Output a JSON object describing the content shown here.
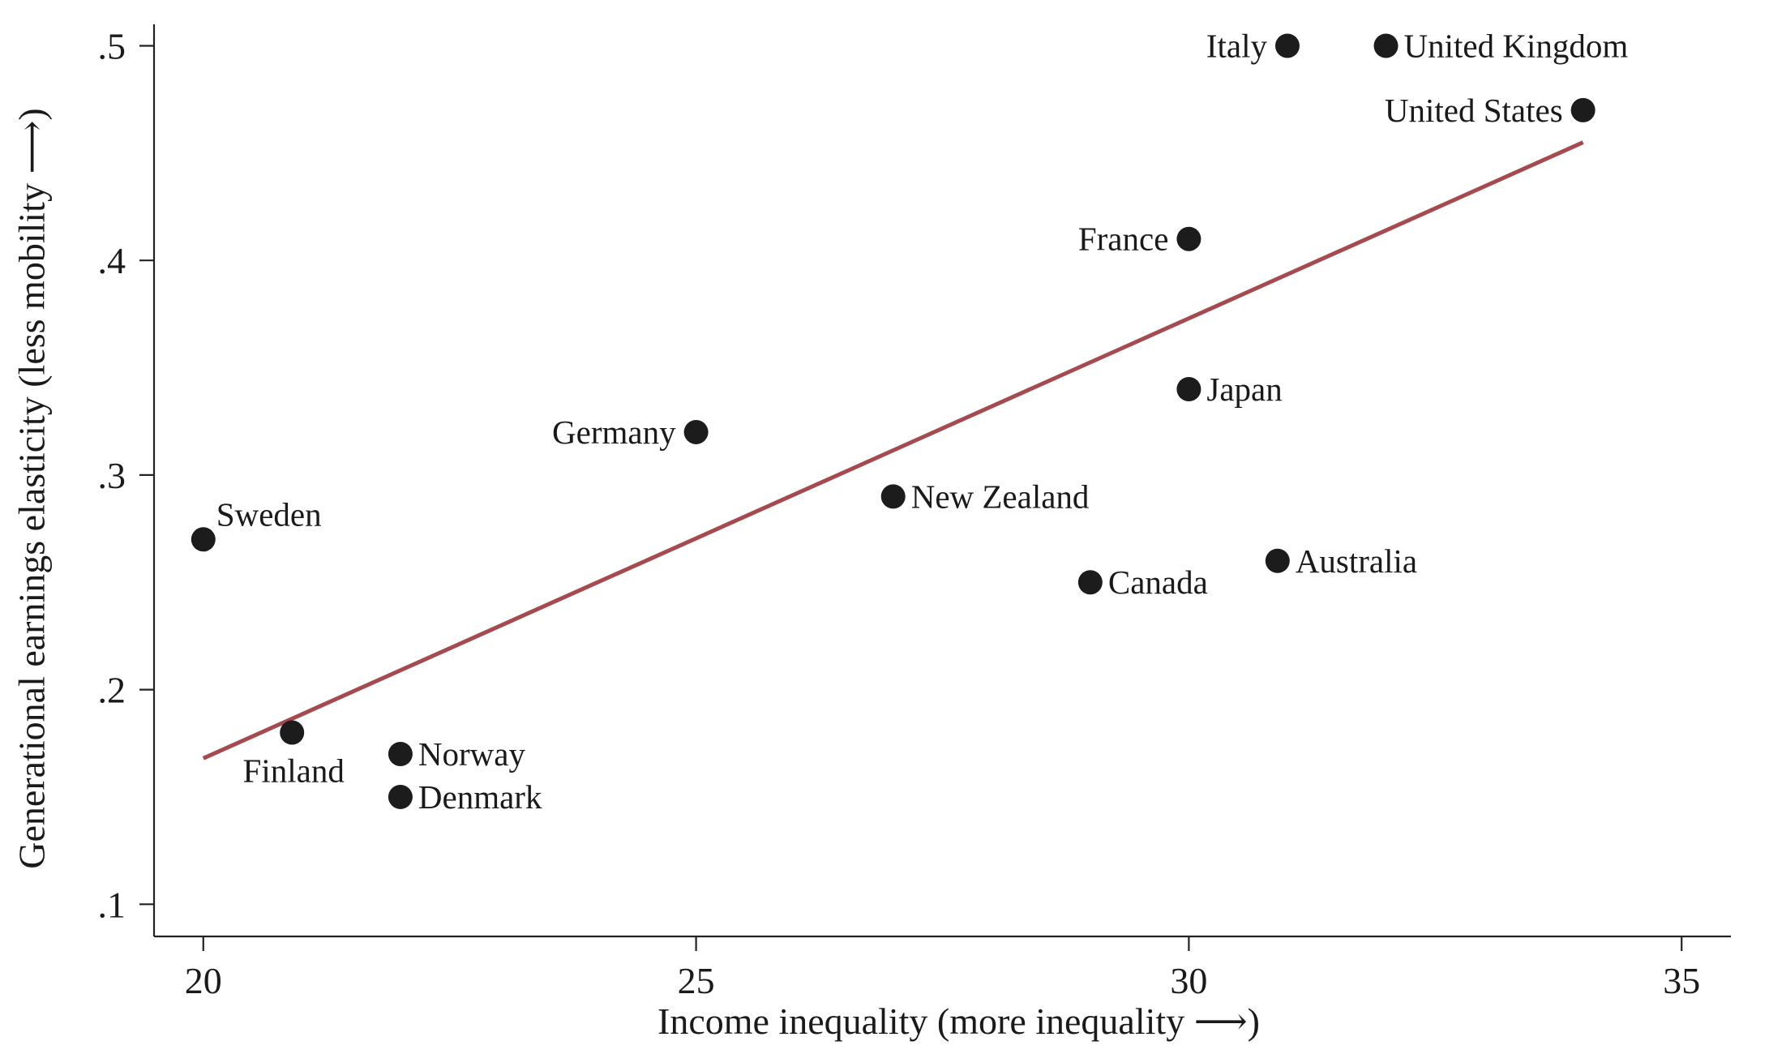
{
  "chart_data": {
    "type": "scatter",
    "title": "",
    "xlabel": "Income inequality (more inequality ⟶)",
    "ylabel": "Generational earnings elasticity (less mobility ⟶)",
    "xlim": [
      19.5,
      35.5
    ],
    "ylim": [
      0.085,
      0.51
    ],
    "x_ticks": [
      20,
      25,
      30,
      35
    ],
    "x_tick_labels": [
      "20",
      "25",
      "30",
      "35"
    ],
    "y_ticks": [
      0.1,
      0.2,
      0.3,
      0.4,
      0.5
    ],
    "y_tick_labels": [
      ".1",
      ".2",
      ".3",
      ".4",
      ".5"
    ],
    "grid": false,
    "legend": "none",
    "point_color": "#1c1c1c",
    "fit_line_color": "#a54b4f",
    "points": [
      {
        "label": "Sweden",
        "x": 20.0,
        "y": 0.27,
        "label_pos": "upper-right"
      },
      {
        "label": "Finland",
        "x": 20.9,
        "y": 0.18,
        "label_pos": "below"
      },
      {
        "label": "Norway",
        "x": 22.0,
        "y": 0.17,
        "label_pos": "right"
      },
      {
        "label": "Denmark",
        "x": 22.0,
        "y": 0.15,
        "label_pos": "right"
      },
      {
        "label": "Germany",
        "x": 25.0,
        "y": 0.32,
        "label_pos": "left"
      },
      {
        "label": "New Zealand",
        "x": 27.0,
        "y": 0.29,
        "label_pos": "right"
      },
      {
        "label": "Canada",
        "x": 29.0,
        "y": 0.25,
        "label_pos": "right"
      },
      {
        "label": "France",
        "x": 30.0,
        "y": 0.41,
        "label_pos": "left"
      },
      {
        "label": "Japan",
        "x": 30.0,
        "y": 0.34,
        "label_pos": "right"
      },
      {
        "label": "Australia",
        "x": 30.9,
        "y": 0.26,
        "label_pos": "right"
      },
      {
        "label": "Italy",
        "x": 31.0,
        "y": 0.5,
        "label_pos": "left"
      },
      {
        "label": "United Kingdom",
        "x": 32.0,
        "y": 0.5,
        "label_pos": "right"
      },
      {
        "label": "United States",
        "x": 34.0,
        "y": 0.47,
        "label_pos": "left"
      }
    ],
    "fit_line": {
      "x": [
        20.0,
        34.0
      ],
      "y": [
        0.168,
        0.455
      ]
    }
  }
}
